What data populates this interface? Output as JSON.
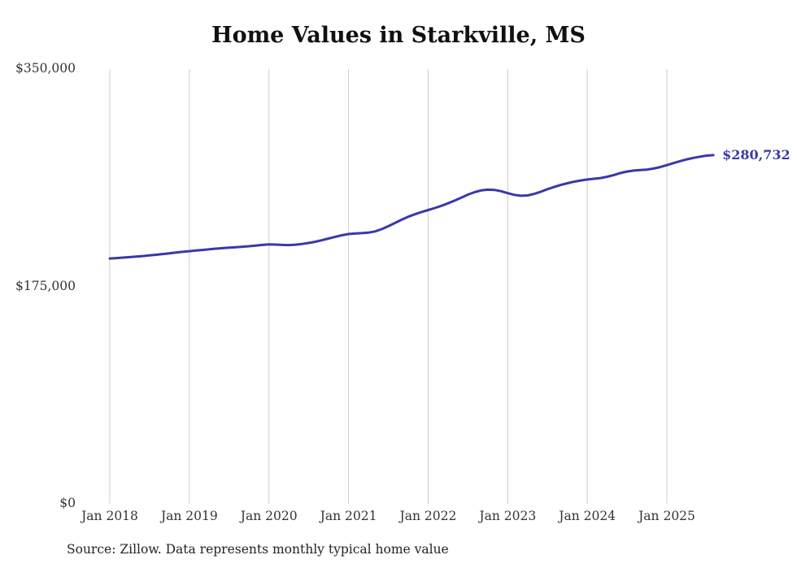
{
  "chart_data": {
    "type": "line",
    "title": "Home Values in Starkville, MS",
    "series_name": "Monthly typical home value",
    "frequency": "monthly",
    "start_month": "Jan 2018",
    "end_month": "Aug 2025",
    "x_tick_labels": [
      "Jan 2018",
      "Jan 2019",
      "Jan 2020",
      "Jan 2021",
      "Jan 2022",
      "Jan 2023",
      "Jan 2024",
      "Jan 2025"
    ],
    "y_tick_labels": [
      "$350,000",
      "$175,000",
      "$0"
    ],
    "y_ticks": [
      350000,
      175000,
      0
    ],
    "ylim": [
      0,
      350000
    ],
    "values": [
      197500,
      197800,
      198200,
      198600,
      199000,
      199500,
      200000,
      200500,
      201100,
      201700,
      202300,
      202900,
      203400,
      203900,
      204400,
      204900,
      205400,
      205800,
      206200,
      206600,
      207000,
      207400,
      207900,
      208400,
      208900,
      208700,
      208400,
      208300,
      208600,
      209200,
      210000,
      211000,
      212200,
      213600,
      215000,
      216200,
      217200,
      217600,
      217900,
      218300,
      219300,
      221100,
      223500,
      226100,
      228700,
      231100,
      233100,
      234900,
      236500,
      238100,
      239900,
      241900,
      244100,
      246500,
      248900,
      250900,
      252300,
      252900,
      252700,
      251700,
      250100,
      248700,
      248000,
      248300,
      249500,
      251300,
      253300,
      255100,
      256700,
      258100,
      259300,
      260300,
      261100,
      261700,
      262300,
      263300,
      264700,
      266300,
      267500,
      268300,
      268700,
      269100,
      269900,
      271100,
      272700,
      274300,
      275900,
      277300,
      278500,
      279500,
      280300,
      280732
    ],
    "end_value": 280732,
    "end_label": "$280,732",
    "line_color": "#3a38a8",
    "grid_color": "#cccccc",
    "grid": "vertical-only",
    "legend": "none"
  },
  "source_note": "Source: Zillow. Data represents monthly typical home value"
}
